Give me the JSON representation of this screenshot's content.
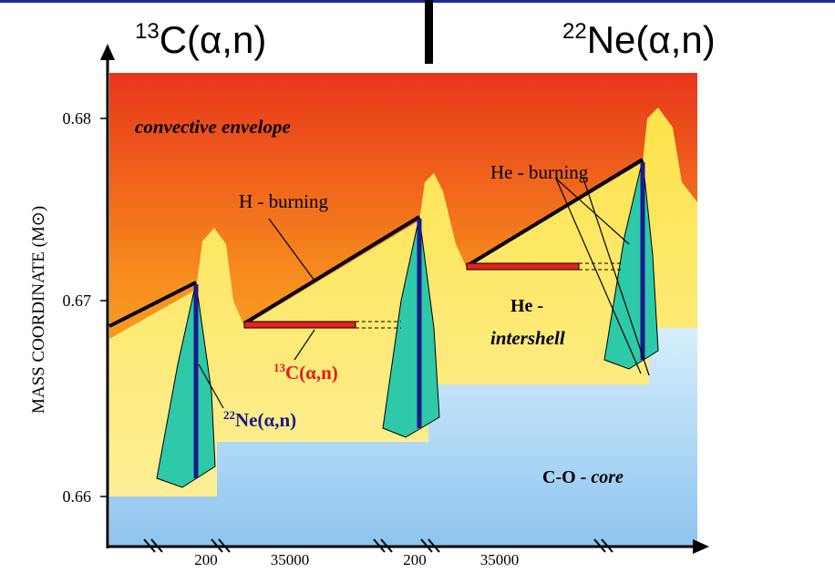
{
  "header": {
    "left": {
      "sup": "13",
      "text": "C(α,n)"
    },
    "right": {
      "sup": "22",
      "text": "Ne(α,n)"
    }
  },
  "y_axis": {
    "label": "MASS COORDINATE (M⊙)",
    "ticks": [
      "0.68",
      "0.67",
      "0.66"
    ]
  },
  "x_axis": {
    "ticks": [
      "200",
      "35000",
      "200",
      "35000"
    ]
  },
  "labels": {
    "envelope": "convective envelope",
    "h_burning": "H - burning",
    "he_burning": "He - burning",
    "intershell_1": "He -",
    "intershell_2": "intershell",
    "c13": {
      "sup": "13",
      "text": "C(α,n)"
    },
    "ne22": {
      "sup": "22",
      "text": "Ne(α,n)"
    },
    "core_1": "C-O - ",
    "core_2": "core"
  }
}
